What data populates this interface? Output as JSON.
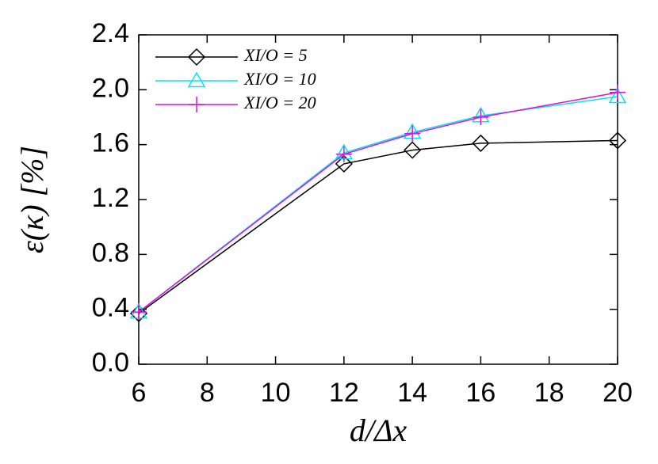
{
  "chart_data": {
    "type": "line",
    "x_label": "d/Δx",
    "y_label": "ε(κ) [%]",
    "x": [
      6,
      12,
      14,
      16,
      20
    ],
    "series": [
      {
        "name": "XI/O = 5",
        "color": "#000000",
        "marker": "diamond",
        "values": [
          0.37,
          1.46,
          1.56,
          1.61,
          1.63
        ]
      },
      {
        "name": "XI/O = 10",
        "color": "#00e5ee",
        "marker": "triangle",
        "values": [
          0.38,
          1.54,
          1.69,
          1.81,
          1.95
        ]
      },
      {
        "name": "XI/O = 20",
        "color": "#e010e0",
        "marker": "plus",
        "values": [
          0.38,
          1.53,
          1.68,
          1.8,
          1.98
        ]
      }
    ],
    "xlim": [
      6,
      20
    ],
    "xticks": [
      6,
      8,
      10,
      12,
      14,
      16,
      18,
      20
    ],
    "ylim": [
      0,
      2.4
    ],
    "yticks": [
      {
        "value": 0,
        "label": "0.0"
      },
      {
        "value": 0.4,
        "label": "0.4"
      },
      {
        "value": 0.8,
        "label": "0.8"
      },
      {
        "value": 1.2,
        "label": "1.2"
      },
      {
        "value": 1.6,
        "label": "1.6"
      },
      {
        "value": 2.0,
        "label": "2.0"
      },
      {
        "value": 2.4,
        "label": "2.4"
      }
    ],
    "legend": "upper left",
    "grid": false
  }
}
